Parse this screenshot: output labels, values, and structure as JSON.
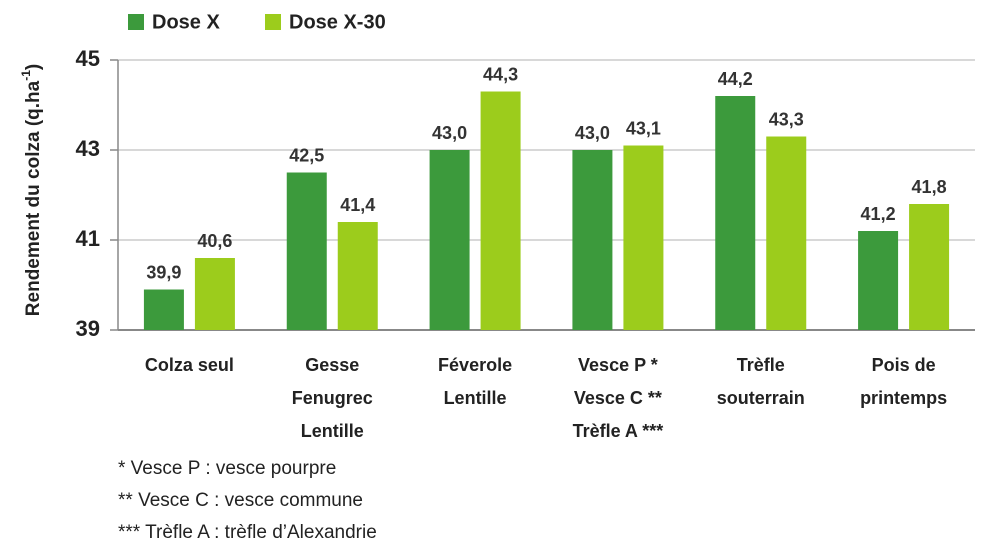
{
  "chart_data": {
    "type": "bar",
    "ylabel": [
      "Rendement du colza (q.ha",
      "-1",
      ")"
    ],
    "categories": [
      [
        "Colza seul"
      ],
      [
        "Gesse",
        "Fenugrec",
        "Lentille"
      ],
      [
        "Féverole",
        "Lentille"
      ],
      [
        "Vesce P *",
        "Vesce C **",
        "Trèfle A ***"
      ],
      [
        "Trèfle",
        "souterrain"
      ],
      [
        "Pois de",
        "printemps"
      ]
    ],
    "series": [
      {
        "name": "Dose X",
        "color": "#3c9a3c",
        "values": [
          39.9,
          42.5,
          43.0,
          43.0,
          44.2,
          41.2
        ],
        "value_labels": [
          "39,9",
          "42,5",
          "43,0",
          "43,0",
          "44,2",
          "41,2"
        ]
      },
      {
        "name": "Dose X-30",
        "color": "#9ccc1c",
        "values": [
          40.6,
          41.4,
          44.3,
          43.1,
          43.3,
          41.8
        ],
        "value_labels": [
          "40,6",
          "41,4",
          "44,3",
          "43,1",
          "43,3",
          "41,8"
        ]
      }
    ],
    "ylim": [
      39,
      45
    ],
    "yticks": [
      39,
      41,
      43,
      45
    ],
    "grid": true,
    "footnotes": [
      "* Vesce P : vesce pourpre",
      "** Vesce C : vesce commune",
      "*** Trèfle A : trèfle d’Alexandrie"
    ]
  }
}
